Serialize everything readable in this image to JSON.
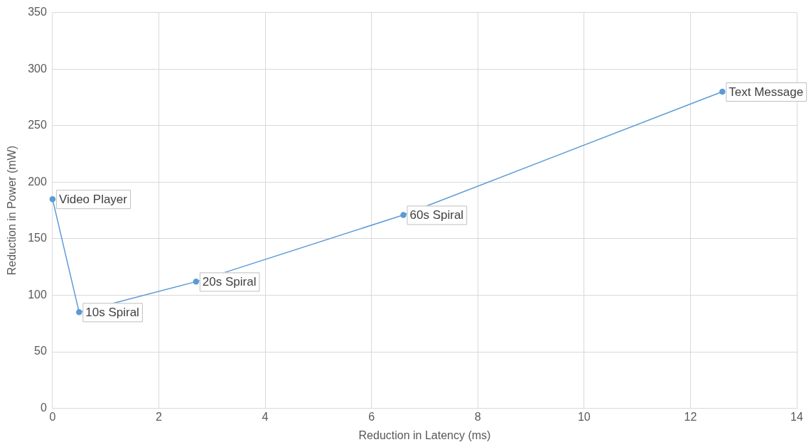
{
  "chart_data": {
    "type": "line",
    "xlabel": "Reduction in Latency (ms)",
    "ylabel": "Reduction in Power (mW)",
    "x": [
      0,
      0.5,
      2.7,
      6.6,
      12.6
    ],
    "series": [
      {
        "color": "#5b9bd5",
        "values": [
          185,
          85,
          112,
          171,
          280
        ]
      }
    ],
    "annotations": [
      {
        "text": "Video Player",
        "x": 0,
        "y": 185
      },
      {
        "text": "10s Spiral",
        "x": 0.5,
        "y": 85
      },
      {
        "text": "20s Spiral",
        "x": 2.7,
        "y": 112
      },
      {
        "text": "60s Spiral",
        "x": 6.6,
        "y": 171
      },
      {
        "text": "Text Message",
        "x": 12.6,
        "y": 280
      }
    ],
    "xlim": [
      0,
      14
    ],
    "xticks": [
      0,
      2,
      4,
      6,
      8,
      10,
      12,
      14
    ],
    "ylim": [
      0,
      350
    ],
    "yticks": [
      0,
      50,
      100,
      150,
      200,
      250,
      300,
      350
    ],
    "grid": true,
    "legend": false,
    "marker": "circle",
    "line_style": "solid"
  }
}
